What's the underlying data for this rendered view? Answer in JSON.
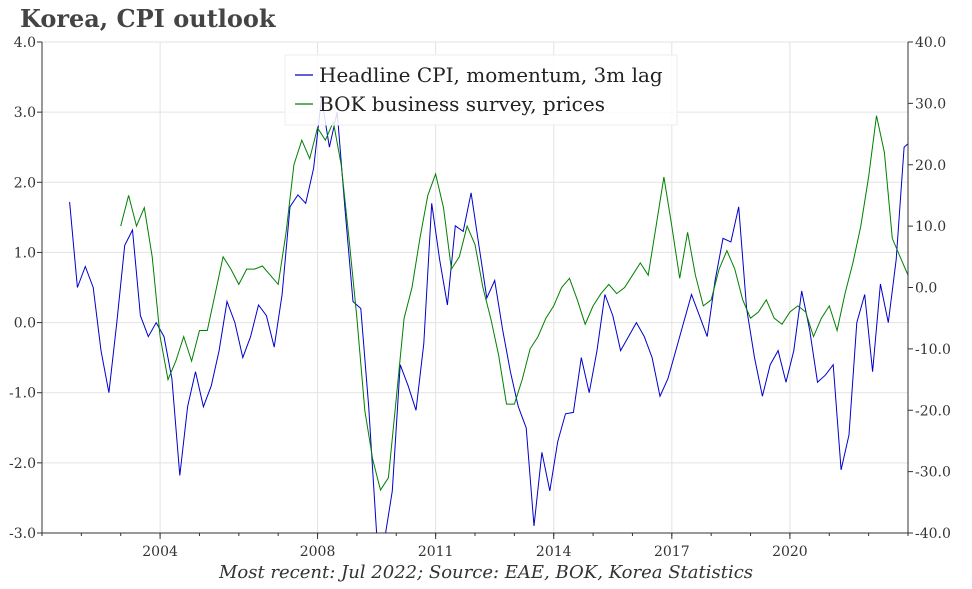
{
  "title": "Korea, CPI outlook",
  "footer": "Most recent: Jul 2022; Source: EAE, BOK, Korea Statistics",
  "chart_data": {
    "type": "line",
    "title": "Korea, CPI outlook",
    "x_range": [
      2001.0,
      2023.0
    ],
    "x_ticks": [
      {
        "value": 2004,
        "label": "2004"
      },
      {
        "value": 2008,
        "label": "2008"
      },
      {
        "value": 2011,
        "label": "2011"
      },
      {
        "value": 2014,
        "label": "2014"
      },
      {
        "value": 2017,
        "label": "2017"
      },
      {
        "value": 2020,
        "label": "2020"
      }
    ],
    "y_left": {
      "range": [
        -3.0,
        4.0
      ],
      "ticks": [
        {
          "value": -3.0,
          "label": "-3.0"
        },
        {
          "value": -2.0,
          "label": "-2.0"
        },
        {
          "value": -1.0,
          "label": "-1.0"
        },
        {
          "value": 0.0,
          "label": "0.0"
        },
        {
          "value": 1.0,
          "label": "1.0"
        },
        {
          "value": 2.0,
          "label": "2.0"
        },
        {
          "value": 3.0,
          "label": "3.0"
        },
        {
          "value": 4.0,
          "label": "4.0"
        }
      ]
    },
    "y_right": {
      "range": [
        -40.0,
        40.0
      ],
      "ticks": [
        {
          "value": -40.0,
          "label": "-40.0"
        },
        {
          "value": -30.0,
          "label": "-30.0"
        },
        {
          "value": -20.0,
          "label": "-20.0"
        },
        {
          "value": -10.0,
          "label": "-10.0"
        },
        {
          "value": 0.0,
          "label": "0.0"
        },
        {
          "value": 10.0,
          "label": "10.0"
        },
        {
          "value": 20.0,
          "label": "20.0"
        },
        {
          "value": 30.0,
          "label": "30.0"
        },
        {
          "value": 40.0,
          "label": "40.0"
        }
      ]
    },
    "grid": true,
    "legend_position": "top-center",
    "series": [
      {
        "name": "Headline CPI, momentum, 3m lag",
        "axis": "left",
        "color": "#0000cc",
        "points": [
          [
            2001.7,
            1.72
          ],
          [
            2001.9,
            0.5
          ],
          [
            2002.1,
            0.8
          ],
          [
            2002.3,
            0.5
          ],
          [
            2002.5,
            -0.4
          ],
          [
            2002.7,
            -1.0
          ],
          [
            2002.9,
            0.0
          ],
          [
            2003.1,
            1.1
          ],
          [
            2003.3,
            1.32
          ],
          [
            2003.5,
            0.1
          ],
          [
            2003.7,
            -0.2
          ],
          [
            2003.9,
            0.0
          ],
          [
            2004.1,
            -0.2
          ],
          [
            2004.3,
            -0.8
          ],
          [
            2004.5,
            -2.18
          ],
          [
            2004.7,
            -1.2
          ],
          [
            2004.9,
            -0.7
          ],
          [
            2005.1,
            -1.2
          ],
          [
            2005.3,
            -0.9
          ],
          [
            2005.5,
            -0.4
          ],
          [
            2005.7,
            0.3
          ],
          [
            2005.9,
            0.0
          ],
          [
            2006.1,
            -0.5
          ],
          [
            2006.3,
            -0.2
          ],
          [
            2006.5,
            0.25
          ],
          [
            2006.7,
            0.1
          ],
          [
            2006.9,
            -0.35
          ],
          [
            2007.1,
            0.4
          ],
          [
            2007.3,
            1.65
          ],
          [
            2007.5,
            1.82
          ],
          [
            2007.7,
            1.7
          ],
          [
            2007.9,
            2.2
          ],
          [
            2008.1,
            3.2
          ],
          [
            2008.3,
            2.5
          ],
          [
            2008.5,
            3.0
          ],
          [
            2008.7,
            1.6
          ],
          [
            2008.9,
            0.3
          ],
          [
            2009.1,
            0.2
          ],
          [
            2009.3,
            -1.2
          ],
          [
            2009.5,
            -3.0
          ],
          [
            2009.7,
            -3.1
          ],
          [
            2009.9,
            -2.4
          ],
          [
            2010.1,
            -0.6
          ],
          [
            2010.3,
            -0.9
          ],
          [
            2010.5,
            -1.25
          ],
          [
            2010.7,
            -0.3
          ],
          [
            2010.9,
            1.7
          ],
          [
            2011.1,
            0.9
          ],
          [
            2011.3,
            0.25
          ],
          [
            2011.5,
            1.38
          ],
          [
            2011.7,
            1.3
          ],
          [
            2011.9,
            1.85
          ],
          [
            2012.1,
            1.1
          ],
          [
            2012.3,
            0.35
          ],
          [
            2012.5,
            0.6
          ],
          [
            2012.7,
            -0.1
          ],
          [
            2012.9,
            -0.7
          ],
          [
            2013.1,
            -1.2
          ],
          [
            2013.3,
            -1.5
          ],
          [
            2013.5,
            -2.9
          ],
          [
            2013.7,
            -1.85
          ],
          [
            2013.9,
            -2.4
          ],
          [
            2014.1,
            -1.7
          ],
          [
            2014.3,
            -1.3
          ],
          [
            2014.5,
            -1.28
          ],
          [
            2014.7,
            -0.5
          ],
          [
            2014.9,
            -1.0
          ],
          [
            2015.1,
            -0.4
          ],
          [
            2015.3,
            0.4
          ],
          [
            2015.5,
            0.1
          ],
          [
            2015.7,
            -0.4
          ],
          [
            2015.9,
            -0.2
          ],
          [
            2016.1,
            0.0
          ],
          [
            2016.3,
            -0.2
          ],
          [
            2016.5,
            -0.5
          ],
          [
            2016.7,
            -1.05
          ],
          [
            2016.9,
            -0.8
          ],
          [
            2017.1,
            -0.4
          ],
          [
            2017.3,
            0.0
          ],
          [
            2017.5,
            0.4
          ],
          [
            2017.7,
            0.1
          ],
          [
            2017.9,
            -0.2
          ],
          [
            2018.1,
            0.6
          ],
          [
            2018.3,
            1.2
          ],
          [
            2018.5,
            1.15
          ],
          [
            2018.7,
            1.65
          ],
          [
            2018.9,
            0.2
          ],
          [
            2019.1,
            -0.5
          ],
          [
            2019.3,
            -1.05
          ],
          [
            2019.5,
            -0.6
          ],
          [
            2019.7,
            -0.4
          ],
          [
            2019.9,
            -0.85
          ],
          [
            2020.1,
            -0.4
          ],
          [
            2020.3,
            0.45
          ],
          [
            2020.5,
            -0.1
          ],
          [
            2020.7,
            -0.85
          ],
          [
            2020.9,
            -0.75
          ],
          [
            2021.1,
            -0.6
          ],
          [
            2021.3,
            -2.1
          ],
          [
            2021.5,
            -1.6
          ],
          [
            2021.7,
            0.0
          ],
          [
            2021.9,
            0.4
          ],
          [
            2022.1,
            -0.7
          ],
          [
            2022.3,
            0.55
          ],
          [
            2022.5,
            0.0
          ],
          [
            2022.7,
            0.9
          ],
          [
            2022.9,
            2.5
          ],
          [
            2023.0,
            2.55
          ]
        ]
      },
      {
        "name": "BOK business survey, prices",
        "axis": "right",
        "color": "#008000",
        "points": [
          [
            2003.0,
            10.0
          ],
          [
            2003.2,
            15.0
          ],
          [
            2003.4,
            10.0
          ],
          [
            2003.6,
            13.0
          ],
          [
            2003.8,
            5.0
          ],
          [
            2004.0,
            -8.0
          ],
          [
            2004.2,
            -15.0
          ],
          [
            2004.4,
            -12.0
          ],
          [
            2004.6,
            -8.0
          ],
          [
            2004.8,
            -12.0
          ],
          [
            2005.0,
            -7.0
          ],
          [
            2005.2,
            -7.0
          ],
          [
            2005.4,
            -1.0
          ],
          [
            2005.6,
            5.0
          ],
          [
            2005.8,
            3.0
          ],
          [
            2006.0,
            0.5
          ],
          [
            2006.2,
            3.0
          ],
          [
            2006.4,
            3.0
          ],
          [
            2006.6,
            3.5
          ],
          [
            2006.8,
            2.0
          ],
          [
            2007.0,
            0.5
          ],
          [
            2007.2,
            9.0
          ],
          [
            2007.4,
            20.0
          ],
          [
            2007.6,
            24.0
          ],
          [
            2007.8,
            21.0
          ],
          [
            2008.0,
            26.0
          ],
          [
            2008.2,
            24.0
          ],
          [
            2008.4,
            27.0
          ],
          [
            2008.6,
            20.0
          ],
          [
            2008.8,
            8.0
          ],
          [
            2009.0,
            -5.0
          ],
          [
            2009.2,
            -20.0
          ],
          [
            2009.4,
            -28.0
          ],
          [
            2009.6,
            -33.0
          ],
          [
            2009.8,
            -31.0
          ],
          [
            2010.0,
            -18.0
          ],
          [
            2010.2,
            -5.0
          ],
          [
            2010.4,
            0.0
          ],
          [
            2010.6,
            8.0
          ],
          [
            2010.8,
            15.0
          ],
          [
            2011.0,
            18.5
          ],
          [
            2011.2,
            13.0
          ],
          [
            2011.4,
            3.0
          ],
          [
            2011.6,
            5.0
          ],
          [
            2011.8,
            10.0
          ],
          [
            2012.0,
            7.0
          ],
          [
            2012.2,
            0.0
          ],
          [
            2012.4,
            -5.0
          ],
          [
            2012.6,
            -11.0
          ],
          [
            2012.8,
            -19.0
          ],
          [
            2013.0,
            -19.0
          ],
          [
            2013.2,
            -15.0
          ],
          [
            2013.4,
            -10.0
          ],
          [
            2013.6,
            -8.0
          ],
          [
            2013.8,
            -5.0
          ],
          [
            2014.0,
            -3.0
          ],
          [
            2014.2,
            0.0
          ],
          [
            2014.4,
            1.5
          ],
          [
            2014.6,
            -2.0
          ],
          [
            2014.8,
            -6.0
          ],
          [
            2015.0,
            -3.0
          ],
          [
            2015.2,
            -1.0
          ],
          [
            2015.4,
            0.5
          ],
          [
            2015.6,
            -1.0
          ],
          [
            2015.8,
            0.0
          ],
          [
            2016.0,
            2.0
          ],
          [
            2016.2,
            4.0
          ],
          [
            2016.4,
            2.0
          ],
          [
            2016.6,
            10.0
          ],
          [
            2016.8,
            18.0
          ],
          [
            2017.0,
            10.0
          ],
          [
            2017.2,
            1.5
          ],
          [
            2017.4,
            9.0
          ],
          [
            2017.6,
            2.0
          ],
          [
            2017.8,
            -3.0
          ],
          [
            2018.0,
            -2.0
          ],
          [
            2018.2,
            3.0
          ],
          [
            2018.4,
            6.0
          ],
          [
            2018.6,
            3.0
          ],
          [
            2018.8,
            -2.0
          ],
          [
            2019.0,
            -5.0
          ],
          [
            2019.2,
            -4.0
          ],
          [
            2019.4,
            -2.0
          ],
          [
            2019.6,
            -5.0
          ],
          [
            2019.8,
            -6.0
          ],
          [
            2020.0,
            -4.0
          ],
          [
            2020.2,
            -3.0
          ],
          [
            2020.4,
            -4.0
          ],
          [
            2020.6,
            -8.0
          ],
          [
            2020.8,
            -5.0
          ],
          [
            2021.0,
            -3.0
          ],
          [
            2021.2,
            -7.0
          ],
          [
            2021.4,
            -1.0
          ],
          [
            2021.6,
            4.0
          ],
          [
            2021.8,
            10.0
          ],
          [
            2022.0,
            18.0
          ],
          [
            2022.2,
            28.0
          ],
          [
            2022.4,
            22.0
          ],
          [
            2022.6,
            8.0
          ],
          [
            2022.8,
            5.0
          ],
          [
            2023.0,
            2.0
          ]
        ]
      }
    ]
  }
}
